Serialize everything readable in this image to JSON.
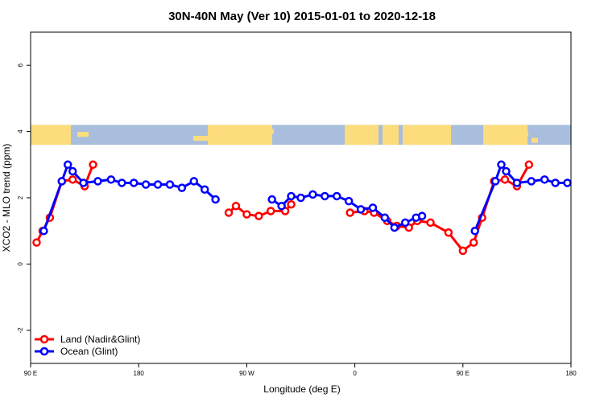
{
  "chart_data": {
    "type": "line",
    "title": "30N-40N May (Ver 10)   2015-01-01 to 2020-12-18",
    "xlabel": "Longitude (deg E)",
    "ylabel": "XCO2 - MLO trend (ppm)",
    "xlim": [
      90,
      450
    ],
    "ylim": [
      -3,
      7
    ],
    "x_ticks": [
      {
        "value": 90,
        "label": "90 E"
      },
      {
        "value": 180,
        "label": "180"
      },
      {
        "value": 270,
        "label": "90 W"
      },
      {
        "value": 360,
        "label": "0"
      },
      {
        "value": 450,
        "label": "90 E"
      },
      {
        "value": 540,
        "label": "180"
      }
    ],
    "x_axis_max": 540,
    "y_ticks": [
      {
        "value": -2,
        "label": "-2"
      },
      {
        "value": 0,
        "label": "0"
      },
      {
        "value": 2,
        "label": "2"
      },
      {
        "value": 4,
        "label": "4"
      },
      {
        "value": 6,
        "label": "6"
      }
    ],
    "map_strip": {
      "y_min": 3.6,
      "y_max": 4.2,
      "ocean_color": "#a9bedc",
      "land_color": "#fcdc7c"
    },
    "legend_position": "bottom-left",
    "series": [
      {
        "name": "Land (Nadir&Glint)",
        "color": "#ff0000",
        "segments": [
          {
            "x": [
              95,
              100,
              106,
              116,
              125,
              135,
              142
            ],
            "y": [
              0.65,
              1.0,
              1.4,
              2.5,
              2.55,
              2.35,
              3.0
            ]
          },
          {
            "x": [
              255,
              261,
              270,
              280,
              290,
              302,
              307
            ],
            "y": [
              1.55,
              1.75,
              1.5,
              1.45,
              1.6,
              1.6,
              1.8
            ]
          },
          {
            "x": [
              356,
              368,
              376,
              387,
              395,
              405,
              412,
              423,
              438,
              450,
              459,
              466,
              476,
              485,
              495,
              505
            ],
            "y": [
              1.55,
              1.6,
              1.55,
              1.3,
              1.15,
              1.1,
              1.3,
              1.25,
              0.95,
              0.4,
              0.65,
              1.4,
              2.5,
              2.55,
              2.35,
              3.0
            ]
          }
        ]
      },
      {
        "name": "Ocean (Glint)",
        "color": "#0000ff",
        "segments": [
          {
            "x": [
              101,
              116,
              121,
              125,
              134,
              146,
              157,
              166,
              176,
              186,
              196,
              206,
              216,
              226,
              235,
              244
            ],
            "y": [
              1.0,
              2.5,
              3.0,
              2.8,
              2.45,
              2.5,
              2.55,
              2.45,
              2.45,
              2.4,
              2.4,
              2.4,
              2.3,
              2.5,
              2.25,
              1.95
            ]
          },
          {
            "x": [
              291,
              299,
              307,
              315,
              325,
              335,
              345,
              355,
              365,
              375,
              385,
              393,
              402,
              411,
              416
            ],
            "y": [
              1.95,
              1.75,
              2.05,
              2.0,
              2.1,
              2.05,
              2.05,
              1.9,
              1.65,
              1.7,
              1.4,
              1.1,
              1.25,
              1.4,
              1.45
            ]
          },
          {
            "x": [
              460,
              477,
              482,
              486,
              495,
              507,
              518,
              527,
              537
            ],
            "y": [
              1.0,
              2.5,
              3.0,
              2.8,
              2.45,
              2.5,
              2.55,
              2.45,
              2.45
            ]
          }
        ]
      }
    ]
  }
}
